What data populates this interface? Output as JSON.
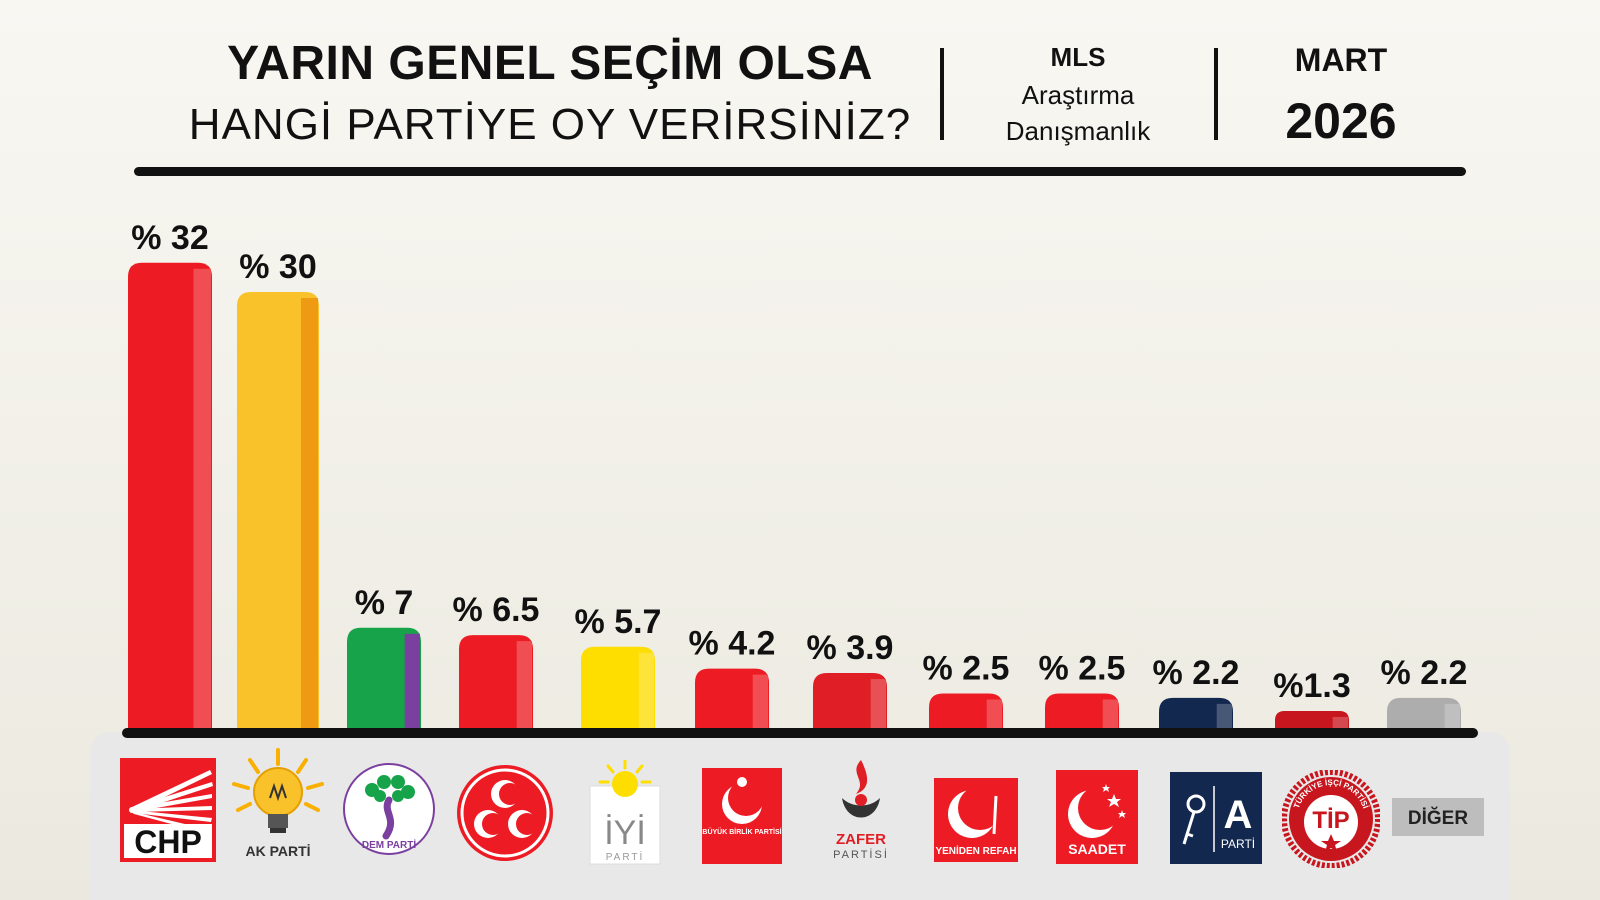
{
  "header": {
    "title_line1": "YARIN GENEL SEÇİM OLSA",
    "title_line2": "HANGİ PARTİYE OY VERİRSİNİZ?",
    "pollster_name": "MLS",
    "pollster_line1": "Araştırma",
    "pollster_line2": "Danışmanlık",
    "month": "MART",
    "year": "2026"
  },
  "colors": {
    "chp": "#ed1c24",
    "ak": "#f9c12a",
    "dem_green": "#16a34a",
    "dem_purple": "#7b3fa0",
    "mhp": "#ed1c24",
    "iyi": "#fedd00",
    "bbp": "#ed1c24",
    "zafer": "#e01e25",
    "yrp": "#ed1c24",
    "saadet": "#ed1c24",
    "aparti": "#13284f",
    "tip": "#c8161e",
    "diger": "#adadad"
  },
  "chart_data": {
    "type": "bar",
    "title": "YARIN GENEL SEÇİM OLSA HANGİ PARTİYE OY VERİRSİNİZ?",
    "categories": [
      "CHP",
      "AK PARTİ",
      "DEM PARTİ",
      "MHP",
      "İYİ PARTİ",
      "BÜYÜK BİRLİK PARTİSİ",
      "ZAFER PARTİSİ",
      "YENİDEN REFAH",
      "SAADET",
      "A PARTİ",
      "TİP",
      "DİĞER"
    ],
    "values": [
      32,
      30,
      7,
      6.5,
      5.7,
      4.2,
      3.9,
      2.5,
      2.5,
      2.2,
      1.3,
      2.2
    ],
    "labels": [
      "% 32",
      "% 30",
      "% 7",
      "% 6.5",
      "% 5.7",
      "% 4.2",
      "% 3.9",
      "% 2.5",
      "% 2.5",
      "% 2.2",
      "%1.3",
      "% 2.2"
    ],
    "bar_colors": [
      "#ed1c24",
      "#f9c12a",
      "#16a34a",
      "#ed1c24",
      "#fedd00",
      "#ed1c24",
      "#e01e25",
      "#ed1c24",
      "#ed1c24",
      "#13284f",
      "#c8161e",
      "#adadad"
    ],
    "ylim": [
      0,
      34
    ],
    "grid": false,
    "legend": "none"
  },
  "logos": {
    "chp_text": "CHP",
    "ak_text": "AK PARTİ",
    "dem_text": "DEM PARTİ",
    "iyi_text": "İYİ",
    "iyi_sub": "PARTİ",
    "bbp_text": "BÜYÜK BİRLİK PARTİSİ",
    "zafer_text": "ZAFER",
    "zafer_sub": "PARTİSİ",
    "yrp_text": "YENİDEN REFAH",
    "saadet_text": "SAADET",
    "aparti_letter": "A",
    "aparti_text": "PARTİ",
    "tip_text": "TİP",
    "tip_ring": "TÜRKİYE İŞÇİ PARTİSİ",
    "diger_text": "DİĞER"
  }
}
